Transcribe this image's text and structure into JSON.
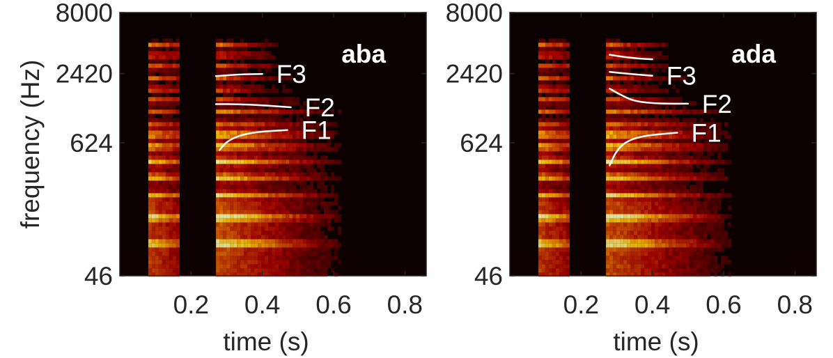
{
  "chart_data": [
    {
      "type": "heatmap",
      "title": "aba",
      "xlabel": "time (s)",
      "ylabel": "frequency (Hz)",
      "xlim": [
        0,
        0.86
      ],
      "y_scale": "log",
      "ylim": [
        46,
        8000
      ],
      "xticks": [
        0.2,
        0.4,
        0.6,
        0.8
      ],
      "xtick_labels": [
        "0.2",
        "0.4",
        "0.6",
        "0.8"
      ],
      "yticks": [
        46,
        624,
        2420,
        8000
      ],
      "ytick_labels": [
        "46",
        "624",
        "2420",
        "8000"
      ],
      "colormap": "hot",
      "background_color": "#0a0000",
      "segments": [
        {
          "t_start": 0.08,
          "t_end": 0.16,
          "f_min": 46,
          "f_max": 4800
        },
        {
          "t_start": 0.27,
          "t_end": 0.62,
          "f_min": 46,
          "f_max": 4800
        }
      ],
      "formant_tracks": [
        {
          "label": "F3",
          "points": [
            [
              0.27,
              2300
            ],
            [
              0.3,
              2340
            ],
            [
              0.34,
              2380
            ],
            [
              0.4,
              2400
            ]
          ]
        },
        {
          "label": "F2",
          "points": [
            [
              0.27,
              1330
            ],
            [
              0.33,
              1330
            ],
            [
              0.4,
              1300
            ],
            [
              0.48,
              1250
            ]
          ]
        },
        {
          "label": "F1",
          "points": [
            [
              0.28,
              540
            ],
            [
              0.3,
              640
            ],
            [
              0.34,
              730
            ],
            [
              0.4,
              780
            ],
            [
              0.47,
              800
            ]
          ]
        }
      ]
    },
    {
      "type": "heatmap",
      "title": "ada",
      "xlabel": "time (s)",
      "ylabel": "",
      "xlim": [
        0,
        0.86
      ],
      "y_scale": "log",
      "ylim": [
        46,
        8000
      ],
      "xticks": [
        0.2,
        0.4,
        0.6,
        0.8
      ],
      "xtick_labels": [
        "0.2",
        "0.4",
        "0.6",
        "0.8"
      ],
      "yticks": [
        46,
        624,
        2420,
        8000
      ],
      "ytick_labels": [
        "46",
        "624",
        "2420",
        "8000"
      ],
      "colormap": "hot",
      "background_color": "#0a0000",
      "segments": [
        {
          "t_start": 0.08,
          "t_end": 0.16,
          "f_min": 46,
          "f_max": 4800
        },
        {
          "t_start": 0.27,
          "t_end": 0.62,
          "f_min": 46,
          "f_max": 4800
        }
      ],
      "formant_tracks": [
        {
          "label": "",
          "points": [
            [
              0.28,
              3500
            ],
            [
              0.32,
              3350
            ],
            [
              0.36,
              3250
            ],
            [
              0.4,
              3200
            ]
          ]
        },
        {
          "label": "F3",
          "points": [
            [
              0.28,
              2500
            ],
            [
              0.32,
              2430
            ],
            [
              0.36,
              2370
            ],
            [
              0.4,
              2320
            ]
          ]
        },
        {
          "label": "F2",
          "points": [
            [
              0.28,
              1800
            ],
            [
              0.31,
              1600
            ],
            [
              0.35,
              1400
            ],
            [
              0.42,
              1340
            ],
            [
              0.5,
              1340
            ]
          ]
        },
        {
          "label": "F1",
          "points": [
            [
              0.28,
              400
            ],
            [
              0.3,
              540
            ],
            [
              0.33,
              650
            ],
            [
              0.38,
              720
            ],
            [
              0.47,
              760
            ]
          ]
        }
      ]
    }
  ]
}
